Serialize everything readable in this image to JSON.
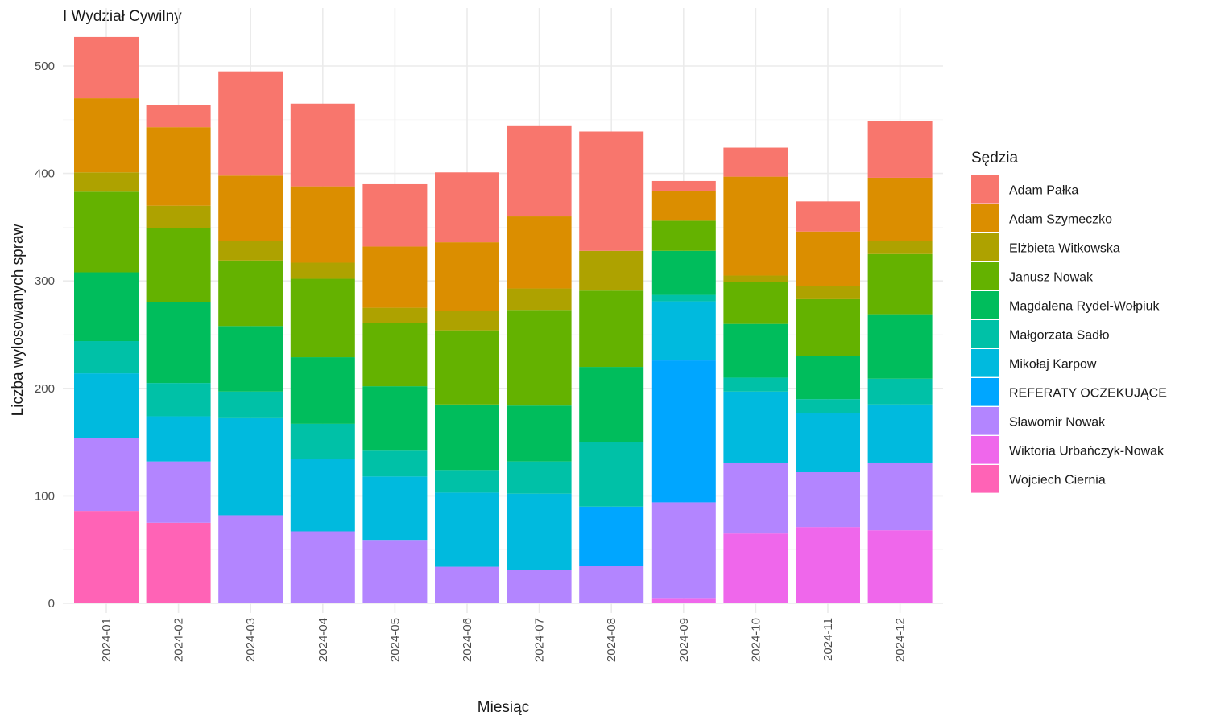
{
  "chart_data": {
    "type": "bar",
    "stacked": true,
    "title": "I Wydział Cywilny",
    "xlabel": "Miesiąc",
    "ylabel": "Liczba wylosowanych spraw",
    "ylim": [
      0,
      530
    ],
    "yticks": [
      0,
      100,
      200,
      300,
      400,
      500
    ],
    "grid": true,
    "legend_title": "Sędzia",
    "legend_position": "right",
    "categories": [
      "2024-01",
      "2024-02",
      "2024-03",
      "2024-04",
      "2024-05",
      "2024-06",
      "2024-07",
      "2024-08",
      "2024-09",
      "2024-10",
      "2024-11",
      "2024-12"
    ],
    "series": [
      {
        "name": "Adam Pałka",
        "color": "#F8766D",
        "values": [
          57,
          21,
          97,
          77,
          58,
          65,
          84,
          111,
          9,
          27,
          28,
          53
        ]
      },
      {
        "name": "Adam Szymeczko",
        "color": "#DB8E00",
        "values": [
          69,
          73,
          61,
          71,
          57,
          64,
          67,
          0,
          28,
          92,
          51,
          59
        ]
      },
      {
        "name": "Elżbieta Witkowska",
        "color": "#AEA200",
        "values": [
          18,
          21,
          18,
          15,
          14,
          18,
          20,
          37,
          0,
          6,
          12,
          12
        ]
      },
      {
        "name": "Janusz Nowak",
        "color": "#64B200",
        "values": [
          75,
          69,
          61,
          73,
          59,
          69,
          89,
          71,
          28,
          39,
          53,
          56
        ]
      },
      {
        "name": "Magdalena Rydel-Wołpiuk",
        "color": "#00BD5C",
        "values": [
          64,
          75,
          61,
          62,
          60,
          61,
          52,
          70,
          41,
          50,
          40,
          60
        ]
      },
      {
        "name": "Małgorzata Sadło",
        "color": "#00C1A7",
        "values": [
          30,
          31,
          24,
          33,
          24,
          21,
          30,
          60,
          6,
          13,
          13,
          24
        ]
      },
      {
        "name": "Mikołaj Karpow",
        "color": "#00BADE",
        "values": [
          60,
          42,
          91,
          67,
          59,
          69,
          71,
          0,
          55,
          66,
          55,
          54
        ]
      },
      {
        "name": "REFERATY OCZEKUJĄCE",
        "color": "#00A6FF",
        "values": [
          0,
          0,
          0,
          0,
          0,
          0,
          0,
          55,
          132,
          0,
          0,
          0
        ]
      },
      {
        "name": "Sławomir Nowak",
        "color": "#B385FF",
        "values": [
          68,
          57,
          82,
          67,
          59,
          34,
          31,
          35,
          89,
          66,
          51,
          63
        ]
      },
      {
        "name": "Wiktoria Urbańczyk-Nowak",
        "color": "#EF67EB",
        "values": [
          0,
          0,
          0,
          0,
          0,
          0,
          0,
          0,
          5,
          65,
          71,
          68
        ]
      },
      {
        "name": "Wojciech Ciernia",
        "color": "#FF63B6",
        "values": [
          86,
          75,
          0,
          0,
          0,
          0,
          0,
          0,
          0,
          0,
          0,
          0
        ]
      }
    ]
  }
}
